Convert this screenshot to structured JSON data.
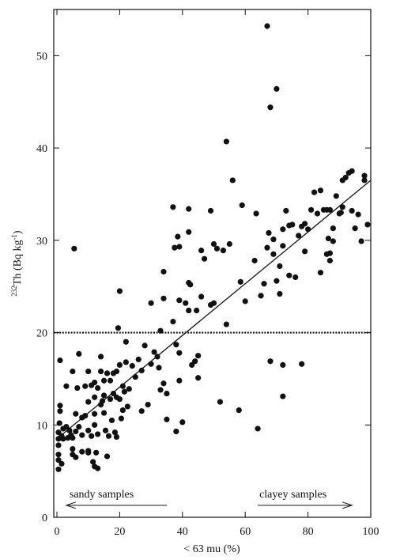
{
  "chart_data": {
    "type": "scatter",
    "title": "",
    "xlabel": "< 63 mu (%)",
    "ylabel_parts": {
      "sup": "232",
      "base": "Th (Bq kg",
      "exp": "-1",
      "close": ")"
    },
    "xlim": [
      0,
      100
    ],
    "ylim": [
      0,
      55
    ],
    "xticks": [
      0,
      20,
      40,
      60,
      80,
      100
    ],
    "yticks": [
      0,
      10,
      20,
      30,
      40,
      50
    ],
    "grid": false,
    "reference_line": {
      "y": 20,
      "style": "dotted"
    },
    "regression_line": {
      "x": [
        0,
        100
      ],
      "y": [
        8.5,
        36.5
      ]
    },
    "annotations": {
      "sandy": {
        "text": "sandy samples",
        "arrow_from_x": 35,
        "arrow_to_x": 3,
        "y": 1.3
      },
      "clayey": {
        "text": "clayey samples",
        "arrow_from_x": 64,
        "arrow_to_x": 94,
        "y": 1.3
      }
    },
    "series": [
      {
        "points": [
          [
            0.5,
            5.2
          ],
          [
            0.5,
            6.2
          ],
          [
            0.5,
            6.8
          ],
          [
            0.5,
            7.8
          ],
          [
            0.5,
            8.5
          ],
          [
            0.5,
            9.2
          ],
          [
            0.8,
            10.2
          ],
          [
            1,
            11.5
          ],
          [
            1,
            12.1
          ],
          [
            1,
            17.0
          ],
          [
            1.5,
            5.8
          ],
          [
            1.5,
            8.8
          ],
          [
            2,
            9.6
          ],
          [
            2,
            8.5
          ],
          [
            3,
            14.2
          ],
          [
            3,
            9.8
          ],
          [
            3.5,
            8.6
          ],
          [
            4,
            9.4
          ],
          [
            4.5,
            8.9
          ],
          [
            5,
            8.6
          ],
          [
            5,
            6.8
          ],
          [
            5,
            7.4
          ],
          [
            5,
            15.8
          ],
          [
            5.5,
            29.1
          ],
          [
            6,
            11.2
          ],
          [
            6,
            9.3
          ],
          [
            6,
            6.5
          ],
          [
            6.5,
            14.0
          ],
          [
            7,
            17.7
          ],
          [
            7,
            9.8
          ],
          [
            8,
            8.9
          ],
          [
            8,
            10.8
          ],
          [
            8,
            7.1
          ],
          [
            9,
            11.0
          ],
          [
            9,
            14.2
          ],
          [
            10,
            15.8
          ],
          [
            10,
            9.4
          ],
          [
            10,
            12.5
          ],
          [
            10,
            7.2
          ],
          [
            10,
            7.0
          ],
          [
            11,
            14.3
          ],
          [
            11,
            8.8
          ],
          [
            11.5,
            6.0
          ],
          [
            12,
            11.2
          ],
          [
            12,
            13.0
          ],
          [
            12,
            10.0
          ],
          [
            12,
            14.6
          ],
          [
            12,
            5.5
          ],
          [
            12.5,
            7.0
          ],
          [
            13,
            5.3
          ],
          [
            13,
            9.0
          ],
          [
            13,
            14.0
          ],
          [
            14,
            12.2
          ],
          [
            14,
            15.8
          ],
          [
            14,
            17.4
          ],
          [
            14.5,
            12.6
          ],
          [
            15,
            13.2
          ],
          [
            15,
            11.3
          ],
          [
            15,
            14.8
          ],
          [
            15.5,
            9.4
          ],
          [
            16,
            15.6
          ],
          [
            16,
            6.6
          ],
          [
            16.5,
            8.8
          ],
          [
            17,
            12.8
          ],
          [
            17,
            14.8
          ],
          [
            17.5,
            10.5
          ],
          [
            18,
            15.6
          ],
          [
            18,
            13.4
          ],
          [
            18.5,
            9.2
          ],
          [
            19,
            8.7
          ],
          [
            19,
            13.0
          ],
          [
            19,
            15.8
          ],
          [
            19.5,
            20.5
          ],
          [
            20,
            12.8
          ],
          [
            20,
            24.5
          ],
          [
            20,
            16.5
          ],
          [
            20.5,
            10.7
          ],
          [
            21,
            11.6
          ],
          [
            21,
            14.2
          ],
          [
            21.5,
            13.6
          ],
          [
            22,
            16.8
          ],
          [
            22,
            19.0
          ],
          [
            22.5,
            12.0
          ],
          [
            23,
            13.9
          ],
          [
            24,
            16.4
          ],
          [
            25,
            15.2
          ],
          [
            26,
            17.1
          ],
          [
            27,
            11.5
          ],
          [
            27,
            15.9
          ],
          [
            28,
            18.6
          ],
          [
            29,
            12.2
          ],
          [
            30,
            23.2
          ],
          [
            30,
            16.6
          ],
          [
            31,
            17.9
          ],
          [
            32,
            17.4
          ],
          [
            32.5,
            16.2
          ],
          [
            33,
            13.8
          ],
          [
            33,
            20.2
          ],
          [
            34,
            26.6
          ],
          [
            34,
            23.7
          ],
          [
            34,
            14.5
          ],
          [
            35,
            10.6
          ],
          [
            35,
            13.4
          ],
          [
            37,
            21.2
          ],
          [
            37,
            33.6
          ],
          [
            37.5,
            29.2
          ],
          [
            38,
            9.3
          ],
          [
            38,
            18.7
          ],
          [
            38.5,
            30.4
          ],
          [
            39,
            23.5
          ],
          [
            39,
            17.8
          ],
          [
            39,
            29.3
          ],
          [
            39,
            14.8
          ],
          [
            40,
            10.3
          ],
          [
            41,
            23.2
          ],
          [
            42,
            33.4
          ],
          [
            42,
            25.4
          ],
          [
            42,
            22.4
          ],
          [
            42,
            30.9
          ],
          [
            42.5,
            25.2
          ],
          [
            43,
            16.5
          ],
          [
            44,
            16.9
          ],
          [
            44.5,
            22.4
          ],
          [
            45,
            15.1
          ],
          [
            45,
            17.5
          ],
          [
            46,
            23.9
          ],
          [
            46,
            28.9
          ],
          [
            47,
            28.0
          ],
          [
            49,
            33.2
          ],
          [
            49,
            23.0
          ],
          [
            50,
            29.6
          ],
          [
            50,
            23.2
          ],
          [
            51,
            29.1
          ],
          [
            52,
            12.5
          ],
          [
            53,
            28.9
          ],
          [
            54,
            20.9
          ],
          [
            54,
            40.7
          ],
          [
            55,
            29.6
          ],
          [
            56,
            36.5
          ],
          [
            58,
            11.6
          ],
          [
            58.5,
            25.5
          ],
          [
            59,
            33.8
          ],
          [
            60,
            23.4
          ],
          [
            63,
            27.8
          ],
          [
            63.5,
            32.9
          ],
          [
            64,
            9.6
          ],
          [
            65,
            24.0
          ],
          [
            66,
            25.3
          ],
          [
            67,
            53.2
          ],
          [
            67,
            29.2
          ],
          [
            67.5,
            30.8
          ],
          [
            68,
            16.9
          ],
          [
            68,
            44.4
          ],
          [
            69,
            28.5
          ],
          [
            69,
            30.1
          ],
          [
            70,
            25.6
          ],
          [
            70,
            46.4
          ],
          [
            71,
            24.2
          ],
          [
            71,
            27.2
          ],
          [
            72,
            16.5
          ],
          [
            72,
            29.4
          ],
          [
            72,
            31.2
          ],
          [
            72,
            13.1
          ],
          [
            73,
            33.2
          ],
          [
            74,
            31.6
          ],
          [
            74,
            26.2
          ],
          [
            75,
            31.7
          ],
          [
            76,
            26.0
          ],
          [
            77,
            30.5
          ],
          [
            78,
            16.6
          ],
          [
            78,
            31.5
          ],
          [
            79,
            28.8
          ],
          [
            79,
            31.8
          ],
          [
            80,
            31.2
          ],
          [
            81,
            33.3
          ],
          [
            82,
            35.2
          ],
          [
            83,
            32.9
          ],
          [
            84,
            35.4
          ],
          [
            84,
            26.5
          ],
          [
            85,
            33.3
          ],
          [
            86,
            28.5
          ],
          [
            86,
            33.3
          ],
          [
            86.5,
            30.2
          ],
          [
            87,
            27.8
          ],
          [
            87,
            28.6
          ],
          [
            87,
            33.3
          ],
          [
            88,
            31.3
          ],
          [
            88,
            29.9
          ],
          [
            89,
            34.8
          ],
          [
            90,
            32.9
          ],
          [
            90.5,
            33.0
          ],
          [
            91,
            33.6
          ],
          [
            91,
            36.5
          ],
          [
            92,
            36.8
          ],
          [
            93,
            37.3
          ],
          [
            94,
            33.2
          ],
          [
            94,
            37.5
          ],
          [
            95,
            31.3
          ],
          [
            96,
            32.8
          ],
          [
            97,
            29.9
          ],
          [
            98,
            37.0
          ],
          [
            98,
            36.5
          ],
          [
            99,
            31.7
          ]
        ]
      }
    ]
  }
}
